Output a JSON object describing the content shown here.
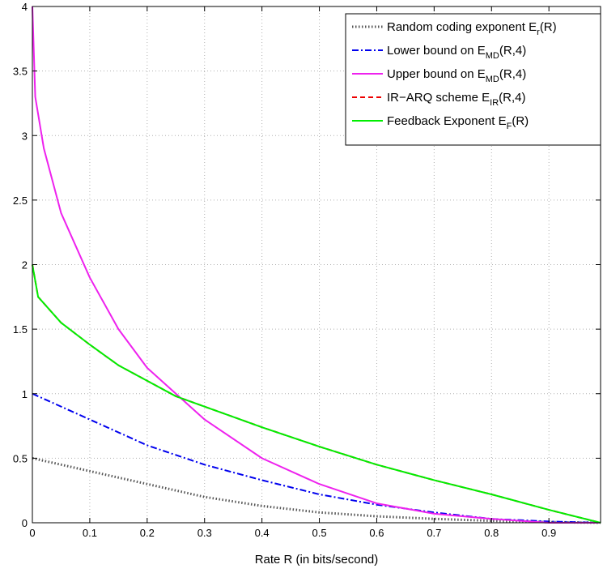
{
  "chart_data": {
    "type": "line",
    "title": "",
    "xlabel": "Rate R (in bits/second)",
    "ylabel": "",
    "xlim": [
      0,
      0.99
    ],
    "ylim": [
      0,
      4
    ],
    "xticks": [
      0,
      0.1,
      0.2,
      0.3,
      0.4,
      0.5,
      0.6,
      0.7,
      0.8,
      0.9
    ],
    "xtick_labels": [
      "0",
      "0.1",
      "0.2",
      "0.3",
      "0.4",
      "0.5",
      "0.6",
      "0.7",
      "0.8",
      "0.9"
    ],
    "yticks": [
      0,
      0.5,
      1,
      1.5,
      2,
      2.5,
      3,
      3.5,
      4
    ],
    "ytick_labels": [
      "0",
      "0.5",
      "1",
      "1.5",
      "2",
      "2.5",
      "3",
      "3.5",
      "4"
    ],
    "grid": true,
    "legend_position": "top-right",
    "series": [
      {
        "name": "Random coding exponent E_r(R)",
        "legend_main": "Random coding exponent E",
        "legend_sub": "r",
        "legend_tail": "(R)",
        "color": "#555555",
        "style": "dotted",
        "x": [
          0,
          0.1,
          0.2,
          0.3,
          0.4,
          0.5,
          0.6,
          0.7,
          0.8,
          0.9,
          0.99
        ],
        "y": [
          0.5,
          0.4,
          0.3,
          0.2,
          0.13,
          0.08,
          0.05,
          0.03,
          0.015,
          0.005,
          0.0
        ]
      },
      {
        "name": "Lower bound on E_MD(R,4)",
        "legend_main": "Lower bound on E",
        "legend_sub": "MD",
        "legend_tail": "(R,4)",
        "color": "#0000ee",
        "style": "dashdot",
        "x": [
          0,
          0.1,
          0.2,
          0.3,
          0.4,
          0.5,
          0.6,
          0.7,
          0.8,
          0.9,
          0.99
        ],
        "y": [
          1.0,
          0.8,
          0.6,
          0.45,
          0.33,
          0.22,
          0.14,
          0.08,
          0.03,
          0.01,
          0.0
        ]
      },
      {
        "name": "Upper bound on E_MD(R,4)",
        "legend_main": "Upper bound on E",
        "legend_sub": "MD",
        "legend_tail": "(R,4)",
        "color": "#ee22ee",
        "style": "solid",
        "x": [
          0,
          0.005,
          0.02,
          0.05,
          0.1,
          0.15,
          0.2,
          0.25,
          0.3,
          0.4,
          0.5,
          0.6,
          0.7,
          0.8,
          0.9,
          0.99
        ],
        "y": [
          4.0,
          3.3,
          2.9,
          2.4,
          1.9,
          1.5,
          1.2,
          1.0,
          0.8,
          0.5,
          0.3,
          0.15,
          0.07,
          0.03,
          0.0,
          0.0
        ]
      },
      {
        "name": "IR-ARQ scheme E_IR(R,4)",
        "legend_main": "IR−ARQ scheme E",
        "legend_sub": "IR",
        "legend_tail": "(R,4)",
        "color": "#ee0000",
        "style": "dashed",
        "x": [
          0,
          0.01,
          0.05,
          0.1,
          0.15,
          0.2,
          0.25,
          0.3,
          0.4,
          0.5,
          0.6,
          0.7,
          0.8,
          0.9,
          0.99
        ],
        "y": [
          2.0,
          1.75,
          1.55,
          1.38,
          1.22,
          1.1,
          0.98,
          0.9,
          0.74,
          0.59,
          0.45,
          0.33,
          0.22,
          0.1,
          0.0
        ]
      },
      {
        "name": "Feedback Exponent E_F(R)",
        "legend_main": "Feedback Exponent E",
        "legend_sub": "F",
        "legend_tail": "(R)",
        "color": "#00ee00",
        "style": "solid",
        "x": [
          0,
          0.01,
          0.05,
          0.1,
          0.15,
          0.2,
          0.25,
          0.3,
          0.4,
          0.5,
          0.6,
          0.7,
          0.8,
          0.9,
          0.99
        ],
        "y": [
          2.0,
          1.75,
          1.55,
          1.38,
          1.22,
          1.1,
          0.98,
          0.9,
          0.74,
          0.59,
          0.45,
          0.33,
          0.22,
          0.1,
          0.0
        ]
      }
    ]
  }
}
